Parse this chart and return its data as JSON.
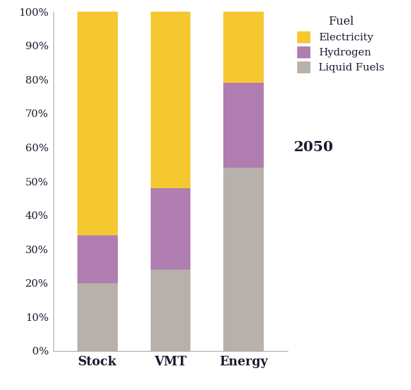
{
  "categories": [
    "Stock",
    "VMT",
    "Energy"
  ],
  "liquid_fuels": [
    0.2,
    0.24,
    0.54
  ],
  "hydrogen": [
    0.14,
    0.24,
    0.25
  ],
  "electricity": [
    0.66,
    0.52,
    0.21
  ],
  "color_liquid": "#b8b0aa",
  "color_hydrogen": "#b07db0",
  "color_electricity": "#f5c832",
  "legend_title": "Fuel",
  "legend_labels": [
    "Electricity",
    "Hydrogen",
    "Liquid Fuels"
  ],
  "year_label": "2050",
  "yticks": [
    0.0,
    0.1,
    0.2,
    0.3,
    0.4,
    0.5,
    0.6,
    0.7,
    0.8,
    0.9,
    1.0
  ],
  "ytick_labels": [
    "0%",
    "10%",
    "20%",
    "30%",
    "40%",
    "50%",
    "60%",
    "70%",
    "80%",
    "90%",
    "100%"
  ],
  "bar_width": 0.55,
  "figsize": [
    6.0,
    5.7
  ],
  "dpi": 100,
  "background_color": "#ffffff",
  "text_color": "#1a1a2e",
  "spine_color": "#aaaaaa"
}
